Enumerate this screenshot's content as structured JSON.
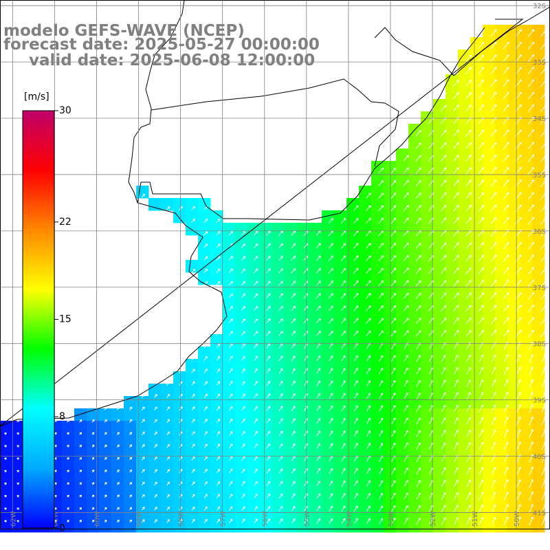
{
  "header": {
    "model_line": "modelo GEFS-WAVE (NCEP)",
    "forecast_line": "forecast date: 2025-05-27 00:00:00",
    "valid_line": "valid date: 2025-06-08 12:00:00"
  },
  "colorbar": {
    "unit": "[m/s]",
    "tick_labels": [
      "30",
      "22",
      "15",
      "8",
      "0"
    ],
    "tick_values": [
      30,
      22,
      15,
      8,
      0
    ],
    "range": [
      0,
      30
    ],
    "colors": [
      "#0000ff",
      "#00aaff",
      "#00ffff",
      "#00ff00",
      "#ffff00",
      "#ff8800",
      "#ff0000",
      "#c0006a"
    ]
  },
  "map": {
    "lat_labels": [
      "32S",
      "33S",
      "34S",
      "35S",
      "36S",
      "37S",
      "38S",
      "39S",
      "40S",
      "41S"
    ],
    "lon_labels": [
      "62W",
      "61W",
      "60W",
      "59W",
      "58W",
      "57W",
      "56W",
      "55W",
      "54W",
      "53W",
      "52W",
      "51W",
      "50W",
      "49W"
    ],
    "lat_range": [
      -41.3,
      -31.9
    ],
    "lon_range": [
      -62.3,
      -49.2
    ],
    "land_color": "#ffffff",
    "grid_color": "#808080",
    "coast_color": "#000000",
    "arrow_color": "#ffffff"
  }
}
